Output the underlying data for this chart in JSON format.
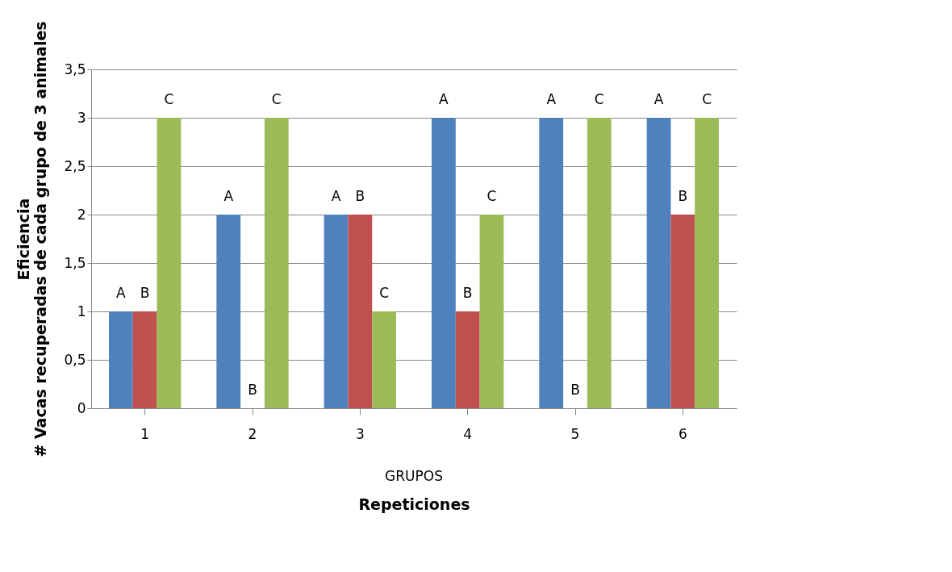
{
  "chart_data": {
    "type": "bar",
    "xlabel": "Repeticiones",
    "ylabel": "Eficiencia\n# Vacas recuperadas de cada grupo de 3 animales",
    "annotations": [
      "GRUPOS"
    ],
    "categories": [
      "1",
      "2",
      "3",
      "4",
      "5",
      "6"
    ],
    "series": [
      {
        "color": "#4f81bd",
        "values": [
          1,
          2,
          2,
          3,
          3,
          3
        ],
        "value_labels": [
          "A",
          "A",
          "A",
          "A",
          "A",
          "A"
        ]
      },
      {
        "color": "#c0504d",
        "values": [
          1,
          0,
          2,
          1,
          0,
          2
        ],
        "value_labels": [
          "B",
          "B",
          "B",
          "B",
          "B",
          "B"
        ]
      },
      {
        "color": "#9bbb59",
        "values": [
          3,
          3,
          1,
          2,
          3,
          3
        ],
        "value_labels": [
          "C",
          "C",
          "C",
          "C",
          "C",
          "C"
        ]
      }
    ],
    "ylim": [
      0,
      3.5
    ],
    "yticks": [
      0,
      {
        "value": 0.5,
        "label": "0,5"
      },
      1,
      {
        "value": 1.5,
        "label": "1,5"
      },
      2,
      {
        "value": 2.5,
        "label": "2,5"
      },
      3,
      {
        "value": 3.5,
        "label": "3,5"
      }
    ],
    "grid": "y"
  }
}
